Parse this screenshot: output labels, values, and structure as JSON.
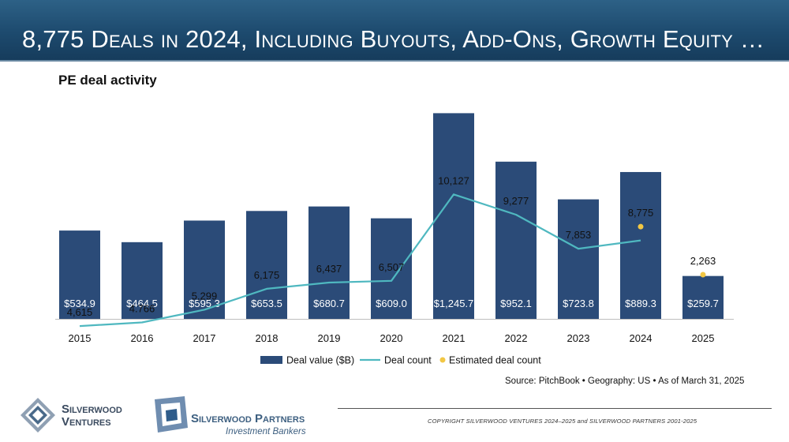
{
  "slide": {
    "title": "8,775 Deals in 2024, Including Buyouts, Add-Ons, Growth Equity …",
    "chart_title": "PE deal activity",
    "source": "Source: PitchBook • Geography: US • As of March 31, 2025",
    "copyright": "COPYRIGHT SILVERWOOD VENTURES 2024–2025 and SILVERWOOD PARTNERS 2001-2025",
    "logo_ventures_line1": "Silverwood",
    "logo_ventures_line2": "Ventures",
    "logo_partners_name": "Silverwood Partners",
    "logo_partners_sub": "Investment Bankers"
  },
  "chart_data": {
    "type": "bar",
    "title": "PE deal activity",
    "categories": [
      "2015",
      "2016",
      "2017",
      "2018",
      "2019",
      "2020",
      "2021",
      "2022",
      "2023",
      "2024",
      "2025"
    ],
    "series": [
      {
        "name": "Deal value ($B)",
        "type": "bar",
        "color": "#2b4b78",
        "values": [
          534.9,
          464.5,
          595.3,
          653.5,
          680.7,
          609.0,
          1245.7,
          952.1,
          723.8,
          889.3,
          259.7
        ],
        "labels": [
          "$534.9",
          "$464.5",
          "$595.3",
          "$653.5",
          "$680.7",
          "$609.0",
          "$1,245.7",
          "$952.1",
          "$723.8",
          "$889.3",
          "$259.7"
        ]
      },
      {
        "name": "Deal count",
        "type": "line",
        "color": "#4fb8c0",
        "values": [
          4615,
          4766,
          5299,
          6175,
          6437,
          6507,
          10127,
          9277,
          7853,
          8198,
          null
        ],
        "labels": [
          "4,615",
          "4.766",
          "5,299",
          "6,175",
          "6,437",
          "6,507",
          "10,127",
          "9,277",
          "7,853",
          "",
          ""
        ]
      },
      {
        "name": "Estimated deal count",
        "type": "scatter",
        "color": "#f2c744",
        "values": [
          null,
          null,
          null,
          null,
          null,
          null,
          null,
          null,
          null,
          8775,
          2263
        ],
        "labels": [
          "",
          "",
          "",
          "",
          "",
          "",
          "",
          "",
          "",
          "8,775",
          "2,263"
        ]
      }
    ],
    "legend_position": "bottom",
    "grid": false
  }
}
